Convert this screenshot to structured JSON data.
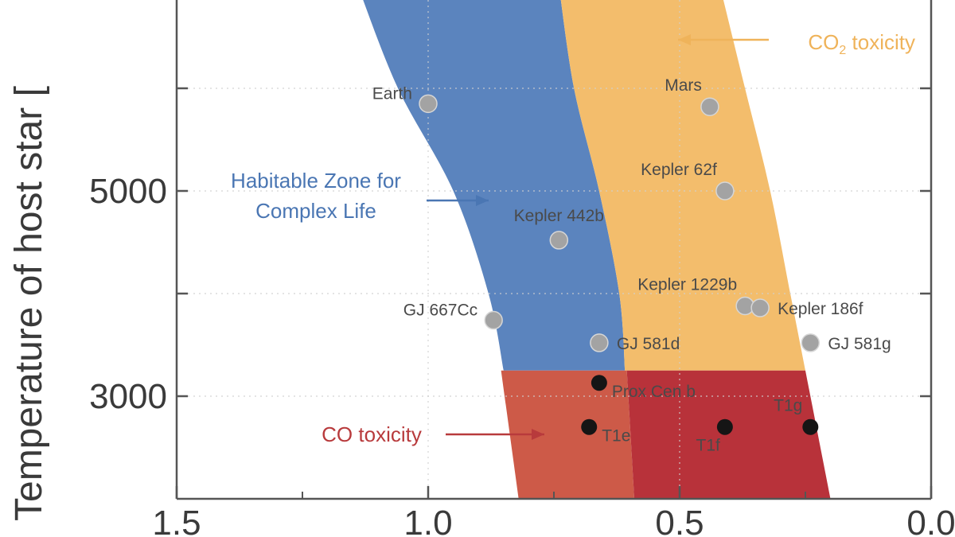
{
  "chart_data": {
    "type": "scatter",
    "title": "",
    "xlabel": "",
    "ylabel": "Temperature of host star [",
    "xlim": [
      1.5,
      0.0
    ],
    "ylim": [
      2000,
      7000
    ],
    "x_reversed": true,
    "x_ticks": [
      1.5,
      1.0,
      0.5,
      0.0
    ],
    "x_tick_labels": [
      "1.5",
      "1.0",
      "0.5",
      "0.0"
    ],
    "y_tick_labels": [
      {
        "value": 5000,
        "label": "5000"
      },
      {
        "value": 3000,
        "label": "3000"
      }
    ],
    "y_minor_ticks": [
      6000,
      5000,
      4000,
      3000
    ],
    "grid": true,
    "colors": {
      "complex_life_zone": "#5b84be",
      "co2_zone": "#f3bd6c",
      "co_zone_left": "#cd5a48",
      "co_zone_right": "#b8323a",
      "grey_point": "#a3a3a3",
      "black_point": "#151515",
      "complex_life_text": "#4a76b3",
      "co2_text": "#efb35a",
      "co_text": "#b83a3c"
    },
    "zones": [
      {
        "name": "Habitable Zone for Complex Life",
        "inner_edge": [
          [
            1.14,
            7000
          ],
          [
            1.06,
            6000
          ],
          [
            0.95,
            5000
          ],
          [
            0.88,
            4000
          ],
          [
            0.84,
            3000
          ],
          [
            0.82,
            2000
          ]
        ],
        "outer_edge": [
          [
            0.74,
            7000
          ],
          [
            0.71,
            6000
          ],
          [
            0.66,
            5000
          ],
          [
            0.62,
            4000
          ],
          [
            0.605,
            3000
          ],
          [
            0.59,
            2000
          ]
        ]
      },
      {
        "name": "CO2 toxicity",
        "inner_edge": [
          [
            0.74,
            7000
          ],
          [
            0.71,
            6000
          ],
          [
            0.66,
            5000
          ],
          [
            0.62,
            4000
          ],
          [
            0.605,
            3000
          ],
          [
            0.59,
            2000
          ]
        ],
        "outer_edge": [
          [
            0.42,
            7000
          ],
          [
            0.37,
            6000
          ],
          [
            0.32,
            5000
          ],
          [
            0.28,
            4000
          ],
          [
            0.25,
            3250
          ]
        ]
      },
      {
        "name": "CO toxicity",
        "temperature_max": 3250,
        "left_edge": [
          [
            0.855,
            3250
          ],
          [
            0.82,
            2000
          ]
        ],
        "right_edge": [
          [
            0.25,
            3250
          ],
          [
            0.2,
            2000
          ]
        ],
        "split_edge": [
          [
            0.605,
            3250
          ],
          [
            0.59,
            2000
          ]
        ]
      }
    ],
    "points": [
      {
        "name": "Earth",
        "x": 1.0,
        "y": 5850,
        "color": "grey",
        "label_side": "left"
      },
      {
        "name": "Mars",
        "x": 0.44,
        "y": 5820,
        "color": "grey",
        "label_side": "above-left"
      },
      {
        "name": "Kepler 62f",
        "x": 0.41,
        "y": 5000,
        "color": "grey",
        "label_side": "above-left"
      },
      {
        "name": "Kepler 442b",
        "x": 0.74,
        "y": 4520,
        "color": "grey",
        "label_side": "above"
      },
      {
        "name": "GJ 667Cc",
        "x": 0.87,
        "y": 3740,
        "color": "grey",
        "label_side": "left"
      },
      {
        "name": "Kepler 1229b",
        "x": 0.37,
        "y": 3880,
        "color": "grey",
        "label_side": "above-left"
      },
      {
        "name": "Kepler 186f",
        "x": 0.34,
        "y": 3860,
        "color": "grey",
        "label_side": "right"
      },
      {
        "name": "GJ 581d",
        "x": 0.66,
        "y": 3520,
        "color": "grey",
        "label_side": "right"
      },
      {
        "name": "GJ 581g",
        "x": 0.24,
        "y": 3520,
        "color": "grey",
        "label_side": "right"
      },
      {
        "name": "Prox Cen b",
        "x": 0.66,
        "y": 3130,
        "color": "black",
        "label_side": "below-right"
      },
      {
        "name": "T1e",
        "x": 0.68,
        "y": 2700,
        "color": "black",
        "label_side": "below-right"
      },
      {
        "name": "T1f",
        "x": 0.41,
        "y": 2700,
        "color": "black",
        "label_side": "below-left"
      },
      {
        "name": "T1g",
        "x": 0.24,
        "y": 2700,
        "color": "black",
        "label_side": "above-left"
      }
    ],
    "annotations": [
      {
        "text": [
          "Habitable Zone for",
          "Complex Life"
        ],
        "color": "complex_life_text",
        "arrow": "right"
      },
      {
        "text": [
          "CO2 toxicity"
        ],
        "subscript_char": 2,
        "color": "co2_text",
        "arrow": "left"
      },
      {
        "text": [
          "CO toxicity"
        ],
        "color": "co_text",
        "arrow": "right"
      }
    ]
  }
}
